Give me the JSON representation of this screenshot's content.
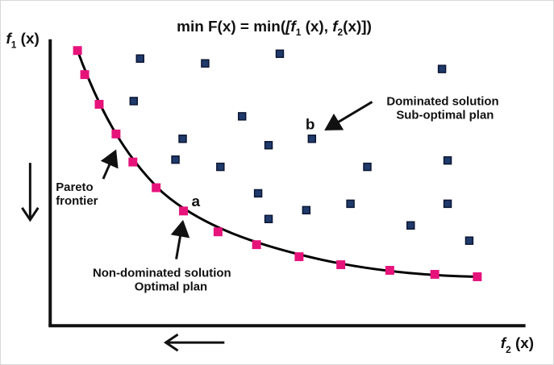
{
  "title": {
    "prefix": "min F(x) = min(",
    "open_bracket": "[",
    "f1": "f",
    "f1_sub": "1",
    "f1_arg": " (x), ",
    "f2": "f",
    "f2_sub": "2",
    "f2_arg": "(x)]",
    "close": ")"
  },
  "axes": {
    "y": {
      "f": "f",
      "sub": "1",
      "arg": " (x)"
    },
    "x": {
      "f": "f",
      "sub": "2",
      "arg": " (x)"
    }
  },
  "labels": {
    "pareto_line1": "Pareto",
    "pareto_line2": "frontier",
    "point_a": "a",
    "point_b": "b",
    "dominated_line1": "Dominated solution",
    "dominated_line2": "Sub-optimal plan",
    "nondominated_line1": "Non-dominated solution",
    "nondominated_line2": "Optimal plan"
  },
  "colors": {
    "pareto_point": "#e6137b",
    "dominated_point": "#1f3a6b",
    "dominated_border": "#0b1633",
    "axis": "#111111",
    "curve": "#000000"
  },
  "icons": {
    "down_arrow": "arrow-down-icon",
    "left_arrow": "arrow-left-icon"
  },
  "chart_data": {
    "type": "scatter",
    "title": "min F(x) = min([f1 (x), f2(x)])",
    "xlabel": "f2 (x)",
    "ylabel": "f1 (x)",
    "series": [
      {
        "name": "Non-dominated solution",
        "points": [
          [
            95,
            62
          ],
          [
            104,
            92
          ],
          [
            122,
            129
          ],
          [
            143,
            166
          ],
          [
            164,
            201
          ],
          [
            193,
            233
          ],
          [
            227,
            262
          ],
          [
            270,
            288
          ],
          [
            318,
            304
          ],
          [
            371,
            319
          ],
          [
            423,
            329
          ],
          [
            484,
            336
          ],
          [
            540,
            341
          ],
          [
            593,
            344
          ]
        ]
      },
      {
        "name": "Dominated solution",
        "points": [
          [
            173,
            72
          ],
          [
            254,
            78
          ],
          [
            347,
            66
          ],
          [
            549,
            85
          ],
          [
            165,
            125
          ],
          [
            300,
            144
          ],
          [
            387,
            172
          ],
          [
            226,
            172
          ],
          [
            333,
            180
          ],
          [
            217,
            198
          ],
          [
            273,
            207
          ],
          [
            456,
            207
          ],
          [
            556,
            199
          ],
          [
            320,
            240
          ],
          [
            380,
            261
          ],
          [
            435,
            253
          ],
          [
            556,
            253
          ],
          [
            333,
            272
          ],
          [
            510,
            280
          ],
          [
            583,
            299
          ]
        ]
      }
    ]
  }
}
